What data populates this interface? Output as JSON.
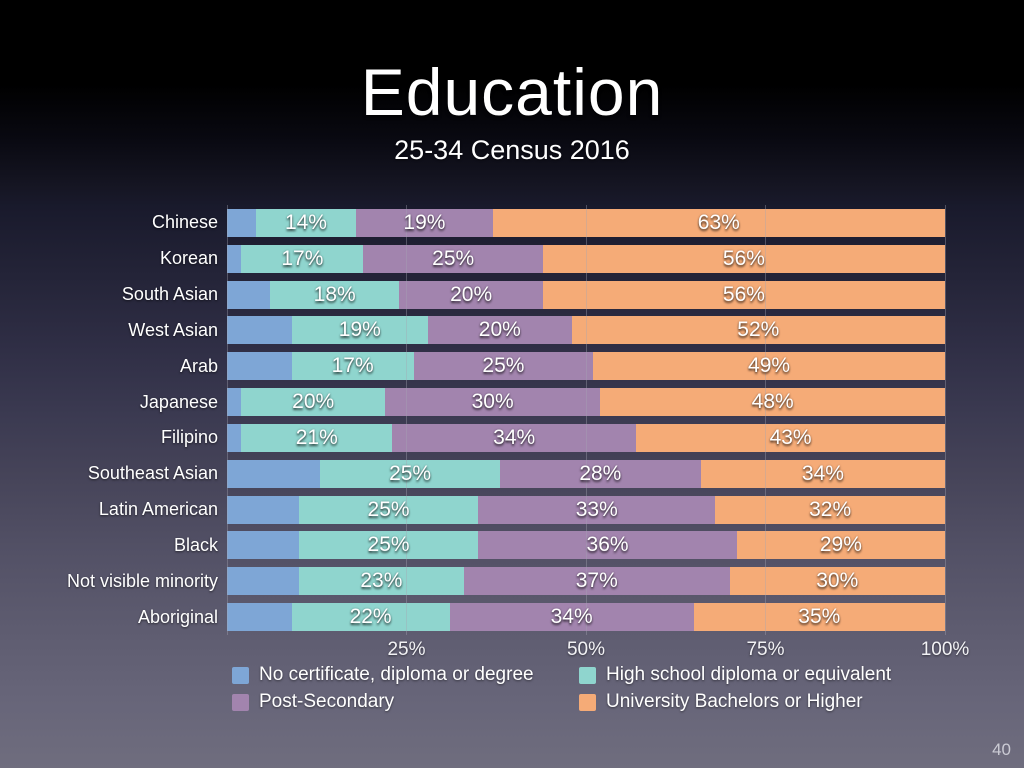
{
  "slide": {
    "title": "Education",
    "subtitle": "25-34 Census 2016",
    "page_number": "40"
  },
  "chart_data": {
    "type": "bar",
    "orientation": "horizontal",
    "stacked": true,
    "value_suffix": "%",
    "title": "Education",
    "subtitle": "25-34 Census 2016",
    "categories": [
      "Chinese",
      "Korean",
      "South Asian",
      "West Asian",
      "Arab",
      "Japanese",
      "Filipino",
      "Southeast Asian",
      "Latin American",
      "Black",
      "Not visible minority",
      "Aboriginal"
    ],
    "series": [
      {
        "name": "No certificate, diploma or degree",
        "color": "#7ea6d6",
        "labels_shown": false,
        "values": [
          4,
          2,
          6,
          9,
          9,
          2,
          2,
          13,
          10,
          10,
          10,
          9
        ]
      },
      {
        "name": "High school diploma or equivalent",
        "color": "#8fd5ce",
        "labels_shown": true,
        "values": [
          14,
          17,
          18,
          19,
          17,
          20,
          21,
          25,
          25,
          25,
          23,
          22
        ]
      },
      {
        "name": "Post-Secondary",
        "color": "#a284ae",
        "labels_shown": true,
        "values": [
          19,
          25,
          20,
          20,
          25,
          30,
          34,
          28,
          33,
          36,
          37,
          34
        ]
      },
      {
        "name": "University Bachelors or Higher",
        "color": "#f5ab77",
        "labels_shown": true,
        "values": [
          63,
          56,
          56,
          52,
          49,
          48,
          43,
          34,
          32,
          29,
          30,
          35
        ]
      }
    ],
    "xlim": [
      0,
      100
    ],
    "gridlines": [
      0,
      25,
      50,
      75,
      100
    ],
    "x_ticks": [
      {
        "label": "25%",
        "position": 25
      },
      {
        "label": "50%",
        "position": 50
      },
      {
        "label": "75%",
        "position": 75
      },
      {
        "label": "100%",
        "position": 100
      }
    ],
    "grid": true,
    "legend_position": "bottom"
  }
}
